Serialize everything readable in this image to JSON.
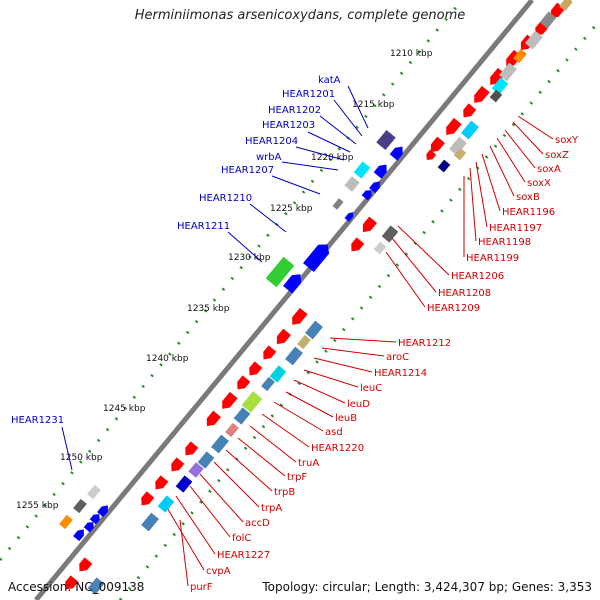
{
  "title": "Herminiimonas arsenicoxydans, complete genome",
  "footer": {
    "accession": "Accession: NC_009138",
    "summary": "Topology: circular; Length: 3,424,307 bp; Genes: 3,353"
  },
  "colors": {
    "backbone": "#7a7a7a",
    "tick_dots": "#2e8b2e",
    "forward_label": "#0000c0",
    "reverse_label": "#d00000",
    "forward_gene": "#0000ff",
    "reverse_gene": "#ff0000"
  },
  "scale_ticks": [
    "1210 kbp",
    "1215 kbp",
    "1220 kbp",
    "1225 kbp",
    "1230 kbp",
    "1235 kbp",
    "1240 kbp",
    "1245 kbp",
    "1250 kbp",
    "1255 kbp"
  ],
  "forward_gene_labels": [
    "katA",
    "HEAR1201",
    "HEAR1202",
    "HEAR1203",
    "HEAR1204",
    "wrbA",
    "HEAR1207",
    "HEAR1210",
    "HEAR1211",
    "HEAR1231"
  ],
  "reverse_gene_labels": [
    "soxY",
    "soxZ",
    "soxA",
    "soxX",
    "soxB",
    "HEAR1196",
    "HEAR1197",
    "HEAR1198",
    "HEAR1199",
    "HEAR1206",
    "HEAR1208",
    "HEAR1209",
    "HEAR1212",
    "aroC",
    "HEAR1214",
    "leuC",
    "leuD",
    "leuB",
    "asd",
    "HEAR1220",
    "truA",
    "trpF",
    "trpB",
    "trpA",
    "accD",
    "folC",
    "HEAR1227",
    "cvpA",
    "purF"
  ]
}
